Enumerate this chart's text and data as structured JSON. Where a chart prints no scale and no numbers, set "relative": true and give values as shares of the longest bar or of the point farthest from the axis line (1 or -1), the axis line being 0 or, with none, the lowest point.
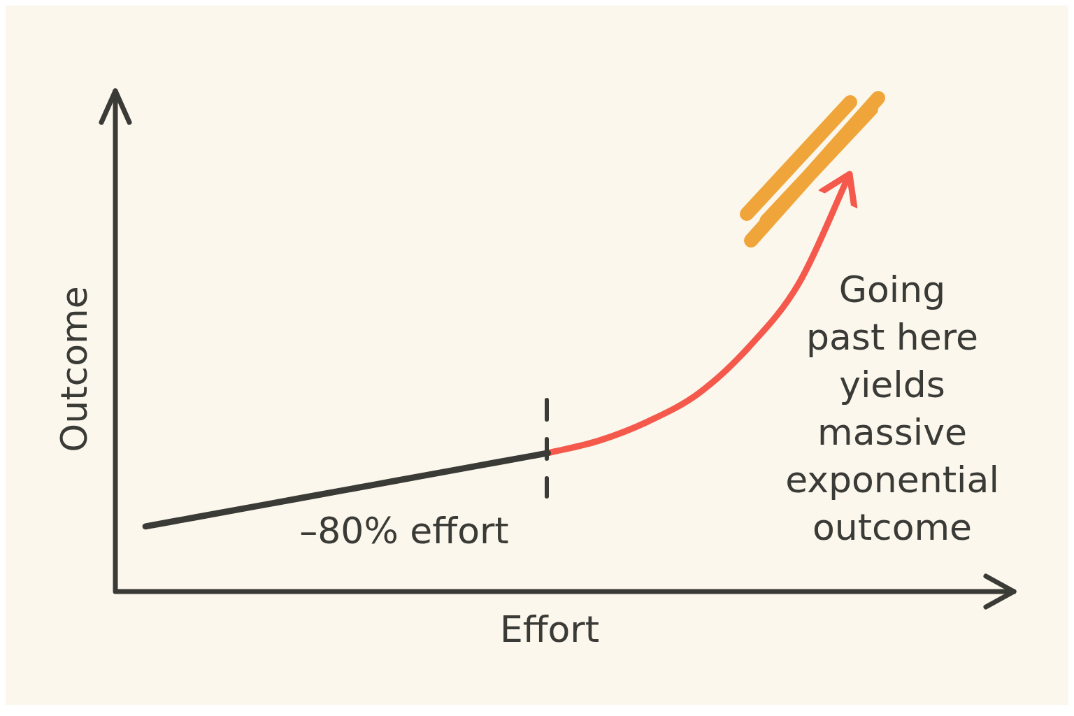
{
  "chart_data": {
    "type": "line",
    "relative": true,
    "xlabel": "Effort",
    "ylabel": "Outcome",
    "categories": [
      null,
      null,
      null,
      null,
      null,
      null,
      null,
      null,
      null,
      null,
      null,
      null,
      null,
      null,
      null
    ],
    "series": [
      {
        "color": "#3a3a36",
        "values": [
          0.156,
          0.178,
          0.2,
          0.222,
          0.244,
          0.266,
          0.288,
          0.31,
          0.332,
          null,
          null,
          null,
          null,
          null,
          null
        ]
      },
      {
        "color": "#f4594c",
        "values": [
          null,
          null,
          null,
          null,
          null,
          null,
          null,
          null,
          0.332,
          0.361,
          0.408,
          0.475,
          0.586,
          0.74,
          1
        ]
      }
    ],
    "annotations": [
      "–80% effort",
      "Going past here yields massive exponential outcome"
    ],
    "legend": false,
    "grid": false,
    "marker": "none",
    "line_style": "solid"
  }
}
